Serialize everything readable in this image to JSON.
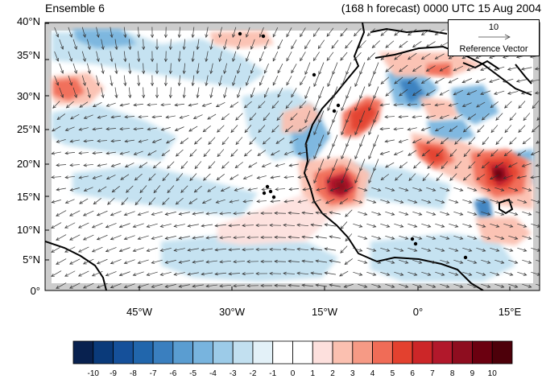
{
  "header": {
    "ensemble": "Ensemble 6",
    "forecast": "(168 h forecast) 0000 UTC 15 Aug 2004"
  },
  "axes": {
    "lat_labels": [
      "40°N",
      "35°N",
      "30°N",
      "25°N",
      "20°N",
      "15°N",
      "10°N",
      "5°N",
      "0°"
    ],
    "lon_labels": [
      "45°W",
      "30°W",
      "15°W",
      "0°",
      "15°E"
    ]
  },
  "reference": {
    "magnitude": "10",
    "label": "Reference Vector"
  },
  "colorbar": {
    "labels": [
      "-10",
      "-9",
      "-8",
      "-7",
      "-6",
      "-5",
      "-4",
      "-3",
      "-2",
      "-1",
      "0",
      "1",
      "2",
      "3",
      "4",
      "5",
      "6",
      "7",
      "8",
      "9",
      "10"
    ],
    "colors": [
      "#08214f",
      "#0a3a7a",
      "#15509a",
      "#2166ac",
      "#3a7fbf",
      "#5a9dd1",
      "#78b4de",
      "#9ccbe8",
      "#c2e0f0",
      "#e3f1f8",
      "#ffffff",
      "#ffffff",
      "#fde0dd",
      "#fbc0b0",
      "#f69a85",
      "#f06c57",
      "#e3412f",
      "#cc2628",
      "#b2182b",
      "#8e0d1f",
      "#6b0010",
      "#4d000a"
    ]
  },
  "colors": {
    "land_outline": "#000000",
    "missing": "#cccccc",
    "arrow": "#333333"
  }
}
